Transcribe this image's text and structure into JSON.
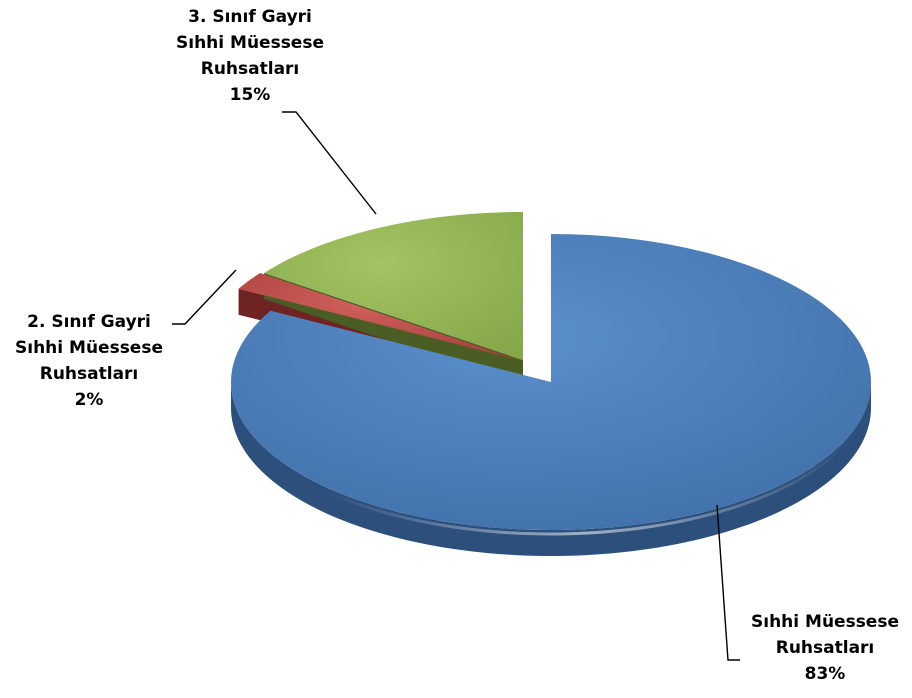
{
  "chart_data": {
    "type": "pie",
    "style": "3d-exploded",
    "legend": "none",
    "categories": [
      "Sıhhi Müessese Ruhsatları",
      "2. Sınıf Gayri Sıhhi Müessese Ruhsatları",
      "3. Sınıf Gayri Sıhhi Müessese Ruhsatları"
    ],
    "values": [
      83,
      2,
      15
    ],
    "colors": [
      "#4f81bd",
      "#c0504d",
      "#9bbb59"
    ],
    "labels": [
      {
        "lines": [
          "Sıhhi Müessese",
          "Ruhsatları"
        ],
        "percent": "83%"
      },
      {
        "lines": [
          "2. Sınıf Gayri",
          "Sıhhi Müessese",
          "Ruhsatları"
        ],
        "percent": "2%"
      },
      {
        "lines": [
          "3. Sınıf Gayri",
          "Sıhhi Müessese",
          "Ruhsatları"
        ],
        "percent": "15%"
      }
    ]
  }
}
